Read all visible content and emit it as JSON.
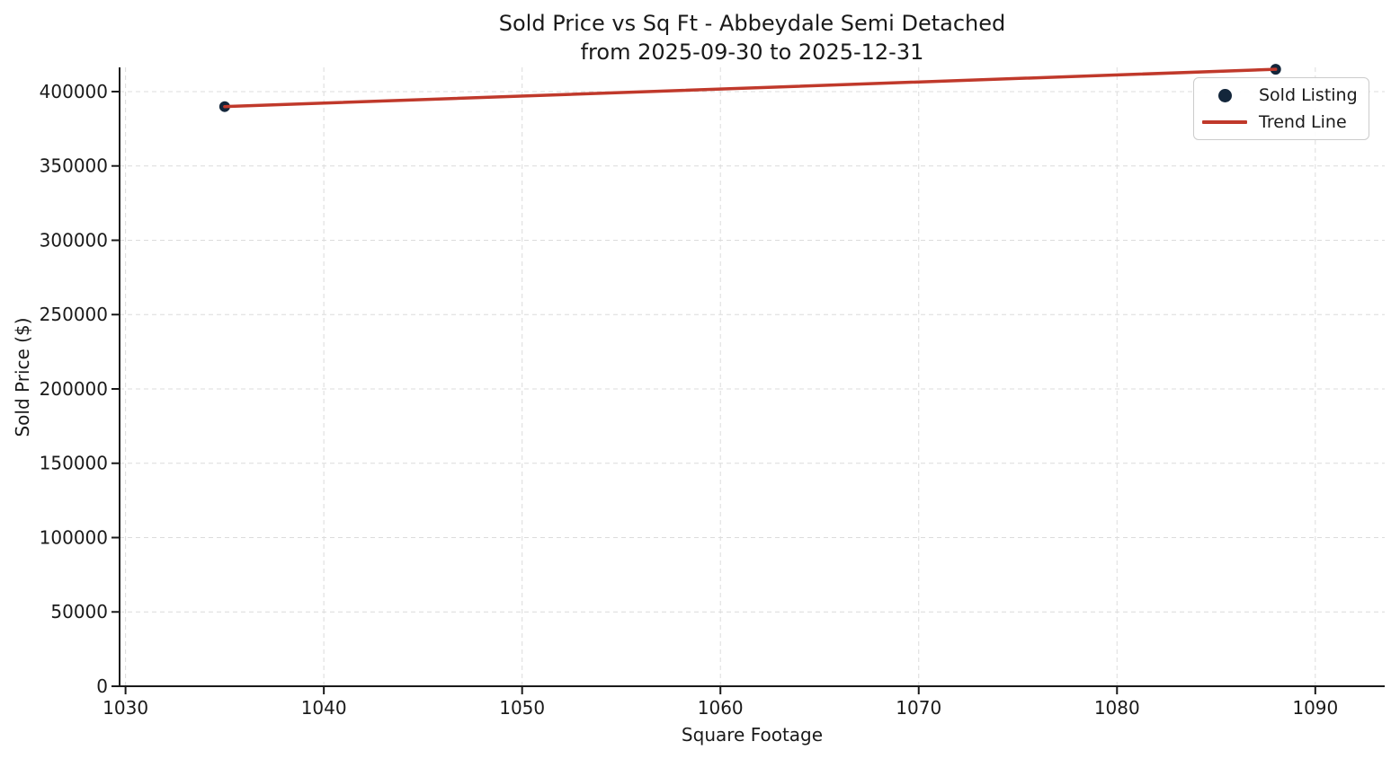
{
  "window": {
    "background": "#ffffff"
  },
  "chart_data": {
    "type": "scatter",
    "title": "Sold Price vs Sq Ft - Abbeydale Semi Detached",
    "subtitle": "from 2025-09-30 to 2025-12-31",
    "xlabel": "Square Footage",
    "ylabel": "Sold Price ($)",
    "xlim": [
      1029.7,
      1093.5
    ],
    "ylim": [
      0,
      416300
    ],
    "xticks": [
      1030,
      1040,
      1050,
      1060,
      1070,
      1080,
      1090
    ],
    "yticks": [
      0,
      50000,
      100000,
      150000,
      200000,
      250000,
      300000,
      350000,
      400000
    ],
    "grid": true,
    "grid_style": "dashed",
    "grid_color": "#dcdcdc",
    "axis_color": "#1a1a1a",
    "legend": {
      "position": "upper-right",
      "entries": [
        {
          "label": "Sold Listing",
          "marker": "dot",
          "color": "#13263b"
        },
        {
          "label": "Trend Line",
          "marker": "line",
          "color": "#c0392b"
        }
      ]
    },
    "series": [
      {
        "name": "Sold Listing",
        "type": "scatter",
        "color": "#13263b",
        "marker_radius": 6,
        "points": [
          {
            "sqft": 1035,
            "price": 389900
          },
          {
            "sqft": 1088,
            "price": 415000
          }
        ]
      },
      {
        "name": "Trend Line",
        "type": "line",
        "color": "#c0392b",
        "line_width": 3.5,
        "points": [
          {
            "sqft": 1035,
            "price": 389900
          },
          {
            "sqft": 1088,
            "price": 415000
          }
        ]
      }
    ]
  }
}
